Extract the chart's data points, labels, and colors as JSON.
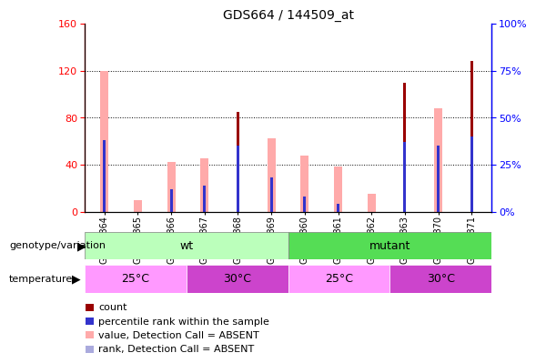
{
  "title": "GDS664 / 144509_at",
  "samples": [
    "GSM21864",
    "GSM21865",
    "GSM21866",
    "GSM21867",
    "GSM21868",
    "GSM21869",
    "GSM21860",
    "GSM21861",
    "GSM21862",
    "GSM21863",
    "GSM21870",
    "GSM21871"
  ],
  "count": [
    0,
    0,
    0,
    0,
    85,
    0,
    0,
    0,
    0,
    110,
    0,
    128
  ],
  "percentile": [
    38,
    0,
    12,
    14,
    35,
    18,
    8,
    4,
    0,
    37,
    35,
    40
  ],
  "value_absent": [
    120,
    10,
    42,
    45,
    0,
    62,
    48,
    38,
    15,
    0,
    88,
    0
  ],
  "rank_absent": [
    38,
    0,
    12,
    14,
    0,
    18,
    8,
    4,
    0,
    0,
    35,
    0
  ],
  "ylim_left": [
    0,
    160
  ],
  "ylim_right": [
    0,
    100
  ],
  "yticks_left": [
    0,
    40,
    80,
    120,
    160
  ],
  "yticks_right": [
    0,
    25,
    50,
    75,
    100
  ],
  "color_count": "#990000",
  "color_percentile": "#3333cc",
  "color_value_absent": "#ffaaaa",
  "color_rank_absent": "#aaaadd",
  "genotype_wt_color": "#bbffbb",
  "genotype_mutant_color": "#55dd55",
  "temp_25_color": "#ff99ff",
  "temp_30_color": "#cc44cc",
  "temp_25_text": "#333333",
  "temp_30_text": "#ffffff"
}
